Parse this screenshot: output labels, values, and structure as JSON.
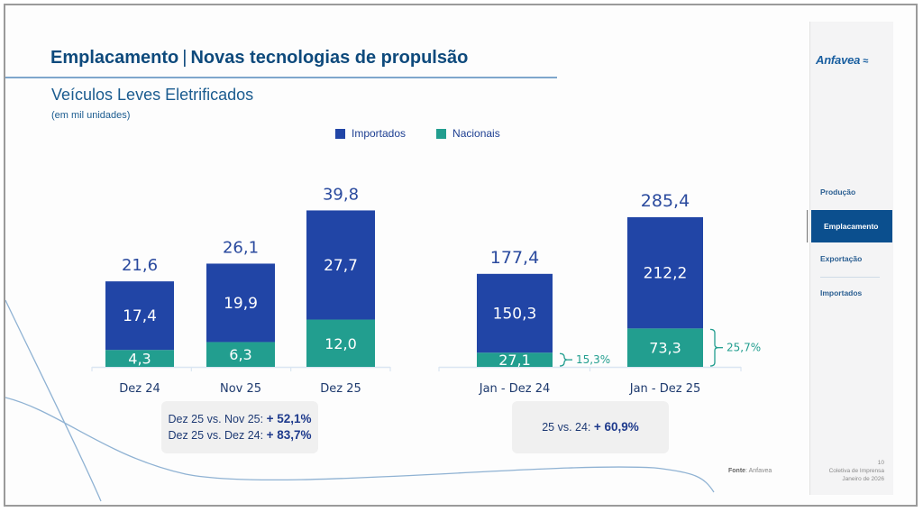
{
  "header": {
    "title_part1": "Emplacamento",
    "title_separator": "|",
    "title_part2": "Novas tecnologias de propulsão",
    "subtitle": "Veículos Leves Eletrificados",
    "unit": "(em mil unidades)"
  },
  "colors": {
    "importados": "#2145a6",
    "nacionais": "#229e8f",
    "total_label": "#2a4a9e",
    "title": "#0e4a7c",
    "nav_active_bg": "#0b4f8e"
  },
  "legend": [
    {
      "label": "Importados",
      "color": "#2145a6"
    },
    {
      "label": "Nacionais",
      "color": "#229e8f"
    }
  ],
  "chart_data": [
    {
      "type": "bar",
      "stacked": true,
      "title": "Veículos Leves Eletrificados — mensal",
      "ylabel": "mil unidades",
      "categories": [
        "Dez 24",
        "Nov 25",
        "Dez 25"
      ],
      "series": [
        {
          "name": "Nacionais",
          "values": [
            4.3,
            6.3,
            12.0
          ],
          "labels": [
            "4,3",
            "6,3",
            "12,0"
          ]
        },
        {
          "name": "Importados",
          "values": [
            17.4,
            19.9,
            27.7
          ],
          "labels": [
            "17,4",
            "19,9",
            "27,7"
          ]
        }
      ],
      "totals": [
        21.6,
        26.1,
        39.8
      ],
      "total_labels": [
        "21,6",
        "26,1",
        "39,8"
      ],
      "grid": false,
      "legend": "top-center"
    },
    {
      "type": "bar",
      "stacked": true,
      "title": "Veículos Leves Eletrificados — acumulado",
      "ylabel": "mil unidades",
      "categories": [
        "Jan - Dez 24",
        "Jan - Dez 25"
      ],
      "series": [
        {
          "name": "Nacionais",
          "values": [
            27.1,
            73.3
          ],
          "labels": [
            "27,1",
            "73,3"
          ]
        },
        {
          "name": "Importados",
          "values": [
            150.3,
            212.2
          ],
          "labels": [
            "150,3",
            "212,2"
          ]
        }
      ],
      "totals": [
        177.4,
        285.4
      ],
      "total_labels": [
        "177,4",
        "285,4"
      ],
      "nacionais_share_labels": [
        "15,3%",
        "25,7%"
      ],
      "grid": false,
      "legend": "top-center"
    }
  ],
  "comparisons": {
    "monthly": [
      {
        "label": "Dez 25 vs. Nov 25:",
        "value": "+ 52,1%"
      },
      {
        "label": "Dez 25 vs. Dez 24:",
        "value": "+ 83,7%"
      }
    ],
    "annual": [
      {
        "label": "25 vs. 24:",
        "value": "+ 60,9%"
      }
    ]
  },
  "source": {
    "label": "Fonte",
    "value": ": Anfavea"
  },
  "sidebar": {
    "logo": "Anfavea",
    "logo_mark": "≈",
    "items": [
      {
        "label": "Produção",
        "active": false
      },
      {
        "label": "Emplacamento",
        "active": true
      },
      {
        "label": "Exportação",
        "active": false
      },
      {
        "label": "Importados",
        "active": false
      }
    ],
    "page_number": "10",
    "event": "Coletiva de Imprensa",
    "date": "Janeiro de 2026"
  }
}
